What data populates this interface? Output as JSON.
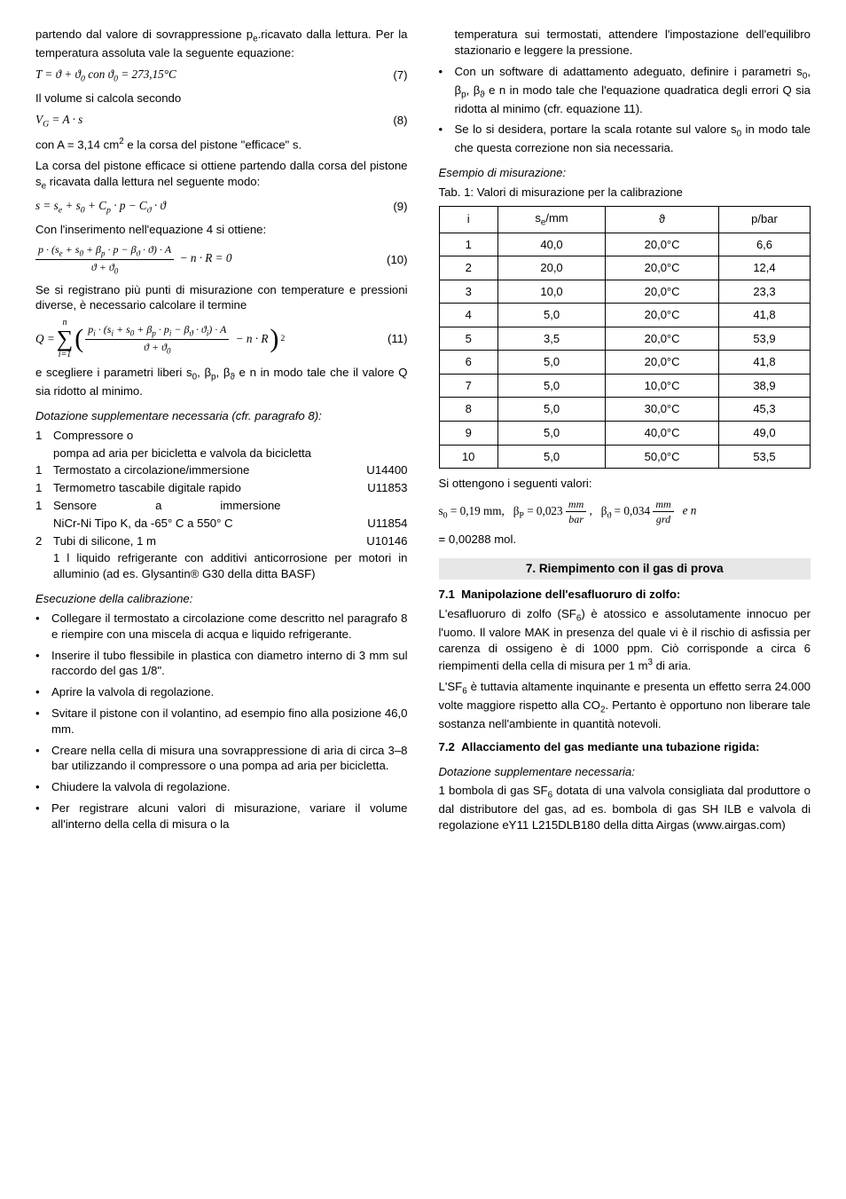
{
  "left": {
    "para1": "partendo dal valore di sovrappressione p<sub>e</sub>.ricavato dalla lettura. Per la temperatura assoluta vale la seguente equazione:",
    "eq7": "T = ϑ + ϑ<sub>0</sub> con ϑ<sub>0</sub> = 273,15°C",
    "eq7num": "(7)",
    "para2": "Il volume si calcola secondo",
    "eq8": "V<sub>G</sub> = A · s",
    "eq8num": "(8)",
    "para3": "con  A = 3,14 cm<sup>2</sup>  e la corsa del pistone \"efficace\" s.",
    "para4": "La corsa del pistone efficace si ottiene partendo dalla corsa del pistone s<sub>e</sub> ricavata dalla lettura nel seguente modo:",
    "eq9": "s = s<sub>e</sub> + s<sub>0</sub> + C<sub>p</sub> · p − C<sub>ϑ</sub> · ϑ",
    "eq9num": "(9)",
    "para5": "Con l'inserimento nell'equazione 4 si ottiene:",
    "eq10_num": "p · (s<sub>e</sub> + s<sub>0</sub> + β<sub>p</sub> · p − β<sub>ϑ</sub> · ϑ) · A",
    "eq10_den": "ϑ + ϑ<sub>0</sub>",
    "eq10_tail": "− n · R = 0",
    "eq10num": "(10)",
    "para6": "Se si registrano più punti di misurazione con temperature e pressioni diverse, è necessario calcolare il termine",
    "eq11_Q": "Q =",
    "eq11_sum_top": "n",
    "eq11_sum_bot": "i=1",
    "eq11_frac_num": "p<sub>i</sub> · (s<sub>i</sub> + s<sub>0</sub> + β<sub>p</sub> · p<sub>i</sub> − β<sub>ϑ</sub> · ϑ<sub>i</sub>) · A",
    "eq11_frac_den": "ϑ + ϑ<sub>0</sub>",
    "eq11_tail": "− n · R",
    "eq11_sq": "2",
    "eq11num": "(11)",
    "para7": "e scegliere i parametri liberi s<sub>0</sub>, β<sub>p</sub>, β<sub>ϑ</sub> e n in modo tale che il valore Q sia ridotto al minimo.",
    "dotHdr": "Dotazione supplementare necessaria (cfr. paragrafo 8):",
    "list": [
      {
        "n": "1",
        "a": "Compressore o",
        "b": ""
      },
      {
        "n": "",
        "a": "pompa ad aria per bicicletta e valvola da bicicletta",
        "b": ""
      },
      {
        "n": "1",
        "a": "Termostato a circolazione/immersione",
        "b": "U14400"
      },
      {
        "n": "1",
        "a": "Termometro tascabile digitale rapido",
        "b": "U11853"
      },
      {
        "n": "1",
        "a": "Sensore&nbsp;&nbsp;&nbsp;&nbsp;&nbsp;&nbsp;&nbsp;&nbsp;&nbsp;&nbsp;&nbsp;&nbsp;&nbsp;&nbsp;&nbsp;&nbsp;&nbsp;&nbsp;a&nbsp;&nbsp;&nbsp;&nbsp;&nbsp;&nbsp;&nbsp;&nbsp;&nbsp;&nbsp;&nbsp;&nbsp;&nbsp;&nbsp;&nbsp;&nbsp;&nbsp;&nbsp;immersione",
        "b": ""
      },
      {
        "n": "",
        "a": "NiCr-Ni Tipo K, da -65° C a 550° C",
        "b": "U11854"
      },
      {
        "n": "2",
        "a": "Tubi di silicone, 1 m",
        "b": "U10146"
      }
    ],
    "para8": "1 l liquido refrigerante con additivi anticorrosione per motori in alluminio (ad es. Glysantin® G30 della ditta BASF)",
    "esecHdr": "Esecuzione della calibrazione:",
    "bullets": [
      "Collegare il termostato a circolazione come descritto nel paragrafo 8 e riempire con una miscela di acqua e liquido refrigerante.",
      "Inserire il tubo flessibile in plastica con diametro interno di 3 mm sul raccordo del gas 1/8\".",
      "Aprire la valvola di regolazione.",
      "Svitare il pistone con il volantino, ad esempio fino alla posizione 46,0 mm.",
      "Creare nella cella di misura una sovrappressione di aria di circa 3–8 bar utilizzando il compressore o una pompa ad aria per bicicletta.",
      "Chiudere la valvola di regolazione.",
      "Per registrare alcuni valori di misurazione, variare il volume all'interno della cella di misura o la"
    ]
  },
  "right": {
    "cont": "temperatura sui termostati, attendere l'impostazione dell'equilibro stazionario e leggere la pressione.",
    "bullets": [
      "Con un software di adattamento adeguato, definire i parametri s<sub>0</sub>, β<sub>p</sub>, β<sub>ϑ</sub> e n in modo tale che l'equazione quadratica degli errori Q sia ridotta al minimo (cfr. equazione 11).",
      "Se lo si desidera, portare la scala rotante sul valore s<sub>0</sub> in modo tale che questa correzione non sia necessaria."
    ],
    "esHdr": "Esempio di misurazione:",
    "tabCap": "Tab. 1: Valori di misurazione per la calibrazione",
    "tableHead": [
      "i",
      "s<sub>e</sub>/mm",
      "ϑ",
      "p/bar"
    ],
    "tableRows": [
      [
        "1",
        "40,0",
        "20,0°C",
        "6,6"
      ],
      [
        "2",
        "20,0",
        "20,0°C",
        "12,4"
      ],
      [
        "3",
        "10,0",
        "20,0°C",
        "23,3"
      ],
      [
        "4",
        "5,0",
        "20,0°C",
        "41,8"
      ],
      [
        "5",
        "3,5",
        "20,0°C",
        "53,9"
      ],
      [
        "6",
        "5,0",
        "20,0°C",
        "41,8"
      ],
      [
        "7",
        "5,0",
        "10,0°C",
        "38,9"
      ],
      [
        "8",
        "5,0",
        "30,0°C",
        "45,3"
      ],
      [
        "9",
        "5,0",
        "40,0°C",
        "49,0"
      ],
      [
        "10",
        "5,0",
        "50,0°C",
        "53,5"
      ]
    ],
    "siOtt": "Si ottengono i seguenti valori:",
    "resultLine": "s<sub>0</sub> = 0,19 mm, &nbsp;",
    "betaP": "β<sub>P</sub> = 0,023",
    "fracPnum": "mm",
    "fracPden": "bar",
    "comma": ", &nbsp;",
    "betaT": "β<sub>ϑ</sub> = 0,034",
    "fracTnum": "mm",
    "fracTden": "grd",
    "tailE": "&nbsp; e n",
    "molLine": "= 0,00288 mol.",
    "sec7": "7. Riempimento con il gas di prova",
    "sub71": "7.1&nbsp;&nbsp;Manipolazione dell'esafluoruro di zolfo:",
    "p71a": "L'esafluoruro di zolfo (SF<sub>6</sub>) è atossico e assolutamente innocuo per l'uomo. Il valore MAK in presenza del quale vi è il rischio di asfissia per carenza di ossigeno è di 1000 ppm. Ciò corrisponde a circa 6 riempimenti della cella di misura per 1 m<sup>3</sup> di aria.",
    "p71b": "L'SF<sub>6</sub> è tuttavia altamente inquinante e presenta un effetto serra 24.000 volte maggiore rispetto alla CO<sub>2</sub>. Pertanto è opportuno non liberare tale sostanza nell'ambiente in quantità notevoli.",
    "sub72": "7.2&nbsp;&nbsp;Allacciamento del gas mediante una tubazione rigida:",
    "dot2": "Dotazione supplementare necessaria:",
    "p72": "1 bombola di gas SF<sub>6</sub> dotata di una valvola consigliata dal produttore o dal distributore del gas, ad es. bombola di gas SH ILB e valvola di regolazione eY11 L215DLB180 della ditta Airgas (www.airgas.com)"
  }
}
